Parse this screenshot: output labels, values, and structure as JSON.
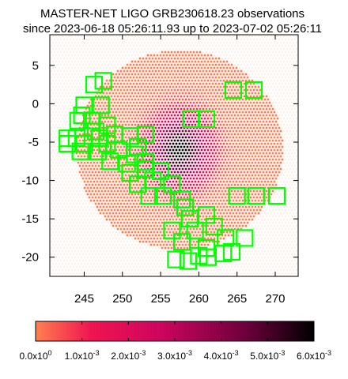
{
  "title_lines": [
    "MASTER-NET LIGO GRB230618.23 observations",
    "since 2023-06-18 05:26:11.93 up to 2023-07-02 05:26:11"
  ],
  "colors": {
    "grid_light": "#fde3d3",
    "prob_low": "#f58a50",
    "prob_mid": "#e01060",
    "prob_high": "#000000",
    "field": "#00ff00",
    "axis": "#000000"
  },
  "chart_data": {
    "type": "heatmap",
    "x_range": [
      240.5,
      273
    ],
    "y_range": [
      -22.5,
      9
    ],
    "x_ticks": [
      245,
      250,
      255,
      260,
      265,
      270
    ],
    "y_ticks": [
      5,
      0,
      -5,
      -10,
      -15,
      -20
    ],
    "x_tick_labels": [
      "245",
      "250",
      "255",
      "260",
      "265",
      "270"
    ],
    "y_tick_labels": [
      "5",
      "0",
      "-5",
      "-10",
      "-15",
      "-20"
    ],
    "probability_region": {
      "center": [
        257.5,
        -6
      ],
      "radius_x": 13.5,
      "radius_y": 13.0,
      "peak_center": [
        257.5,
        -6
      ],
      "peak_value": 0.006
    },
    "colorbar": {
      "min": 0,
      "max": 0.006,
      "ticks": [
        0,
        0.001,
        0.002,
        0.003,
        0.004,
        0.005,
        0.006
      ],
      "tick_labels": [
        {
          "mantissa": "0.0x10",
          "exp": "0"
        },
        {
          "mantissa": "1.0x10",
          "exp": "-3"
        },
        {
          "mantissa": "2.0x10",
          "exp": "-3"
        },
        {
          "mantissa": "3.0x10",
          "exp": "-3"
        },
        {
          "mantissa": "4.0x10",
          "exp": "-3"
        },
        {
          "mantissa": "5.0x10",
          "exp": "-3"
        },
        {
          "mantissa": "6.0x10",
          "exp": "-3"
        }
      ]
    },
    "fields": [
      [
        247.5,
        3.0
      ],
      [
        246.3,
        2.5
      ],
      [
        264.5,
        1.8
      ],
      [
        267.2,
        1.8
      ],
      [
        245.0,
        -0.2
      ],
      [
        247.2,
        -0.2
      ],
      [
        244.7,
        -1.5
      ],
      [
        244.2,
        -2.2
      ],
      [
        246.0,
        -2.2
      ],
      [
        248.0,
        -2.8
      ],
      [
        246.5,
        -3.6
      ],
      [
        249.0,
        -4.0
      ],
      [
        251.0,
        -4.2
      ],
      [
        244.0,
        -4.5
      ],
      [
        247.0,
        -4.5
      ],
      [
        253.0,
        -4.0
      ],
      [
        242.8,
        -4.5
      ],
      [
        242.8,
        -5.2
      ],
      [
        245.0,
        -5.2
      ],
      [
        248.0,
        -5.2
      ],
      [
        252.0,
        -5.6
      ],
      [
        244.5,
        -6.2
      ],
      [
        246.8,
        -6.2
      ],
      [
        249.5,
        -6.0
      ],
      [
        251.6,
        -6.6
      ],
      [
        248.4,
        -7.5
      ],
      [
        250.6,
        -7.8
      ],
      [
        253.0,
        -7.6
      ],
      [
        259.0,
        -2.0
      ],
      [
        261.0,
        -2.0
      ],
      [
        251.0,
        -9.0
      ],
      [
        253.0,
        -8.5
      ],
      [
        255.0,
        -8.8
      ],
      [
        252.0,
        -10.5
      ],
      [
        254.0,
        -10.0
      ],
      [
        256.5,
        -10.5
      ],
      [
        253.5,
        -12.0
      ],
      [
        255.3,
        -12.0
      ],
      [
        257.8,
        -12.5
      ],
      [
        265.0,
        -12.0
      ],
      [
        267.5,
        -12.0
      ],
      [
        270.2,
        -12.0
      ],
      [
        258.2,
        -13.5
      ],
      [
        258.8,
        -15.0
      ],
      [
        261.0,
        -14.5
      ],
      [
        256.5,
        -16.5
      ],
      [
        259.5,
        -16.5
      ],
      [
        262.0,
        -16.0
      ],
      [
        257.8,
        -18.0
      ],
      [
        261.0,
        -18.8
      ],
      [
        263.5,
        -17.5
      ],
      [
        266.0,
        -17.5
      ],
      [
        264.3,
        -19.3
      ],
      [
        260.0,
        -19.8
      ],
      [
        257.0,
        -20.3
      ],
      [
        258.6,
        -20.5
      ],
      [
        261.2,
        -20.0
      ],
      [
        263.2,
        -19.5
      ]
    ]
  }
}
